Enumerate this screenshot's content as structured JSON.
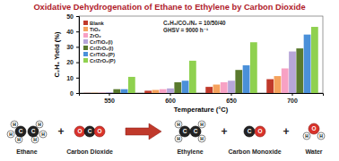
{
  "chart_data": {
    "type": "bar",
    "title": "Oxidative Dehydrogenation of Ethane to Ethylene by Carbon Dioxide",
    "x_label": "Temperature (°C)",
    "y_label": "C₂H₄ Yield (%)",
    "categories": [
      "550",
      "600",
      "650",
      "700"
    ],
    "series": [
      {
        "name": "Blank",
        "color": "#c0392b",
        "values": [
          0.1,
          1.5,
          4,
          9
        ]
      },
      {
        "name": "TiO₂",
        "color": "#f5a25d",
        "values": [
          0.2,
          2,
          5.5,
          11
        ]
      },
      {
        "name": "ZrO₂",
        "color": "#f7a1c4",
        "values": [
          0.3,
          2.5,
          7,
          16
        ]
      },
      {
        "name": "Cr/TiO₂(I)",
        "color": "#b7a6d9",
        "values": [
          0.5,
          3,
          8,
          27
        ]
      },
      {
        "name": "Cr/ZrO₂(I)",
        "color": "#5a7a2e",
        "values": [
          2.5,
          7,
          15,
          29
        ]
      },
      {
        "name": "Cr/TiO₂(P)",
        "color": "#4a90d9",
        "values": [
          2.5,
          8,
          18,
          38
        ]
      },
      {
        "name": "Cr/ZrO₂(P)",
        "color": "#8fd14f",
        "values": [
          10.5,
          21,
          33,
          43
        ]
      }
    ],
    "ylim": [
      0,
      50
    ],
    "yticks": [
      0,
      10,
      20,
      30,
      40,
      50
    ],
    "grid": false,
    "legend": "upper-left",
    "annotations": [
      "C₂H₆/CO₂/N₂ = 10/50/40",
      "GHSV = 9000 h⁻¹"
    ]
  },
  "scheme": {
    "reactants": [
      {
        "name": "Ethane",
        "atoms": [
          "C",
          "C",
          "H",
          "H",
          "H",
          "H",
          "H",
          "H"
        ]
      },
      {
        "name": "Carbon Dioxide",
        "atoms": [
          "O",
          "C",
          "O"
        ]
      }
    ],
    "products": [
      {
        "name": "Ethylene",
        "atoms": [
          "C",
          "C",
          "H",
          "H",
          "H",
          "H"
        ]
      },
      {
        "name": "Carbon Monoxide",
        "atoms": [
          "C",
          "O"
        ]
      },
      {
        "name": "Water",
        "atoms": [
          "O",
          "H",
          "H"
        ]
      }
    ],
    "plus": "+"
  }
}
